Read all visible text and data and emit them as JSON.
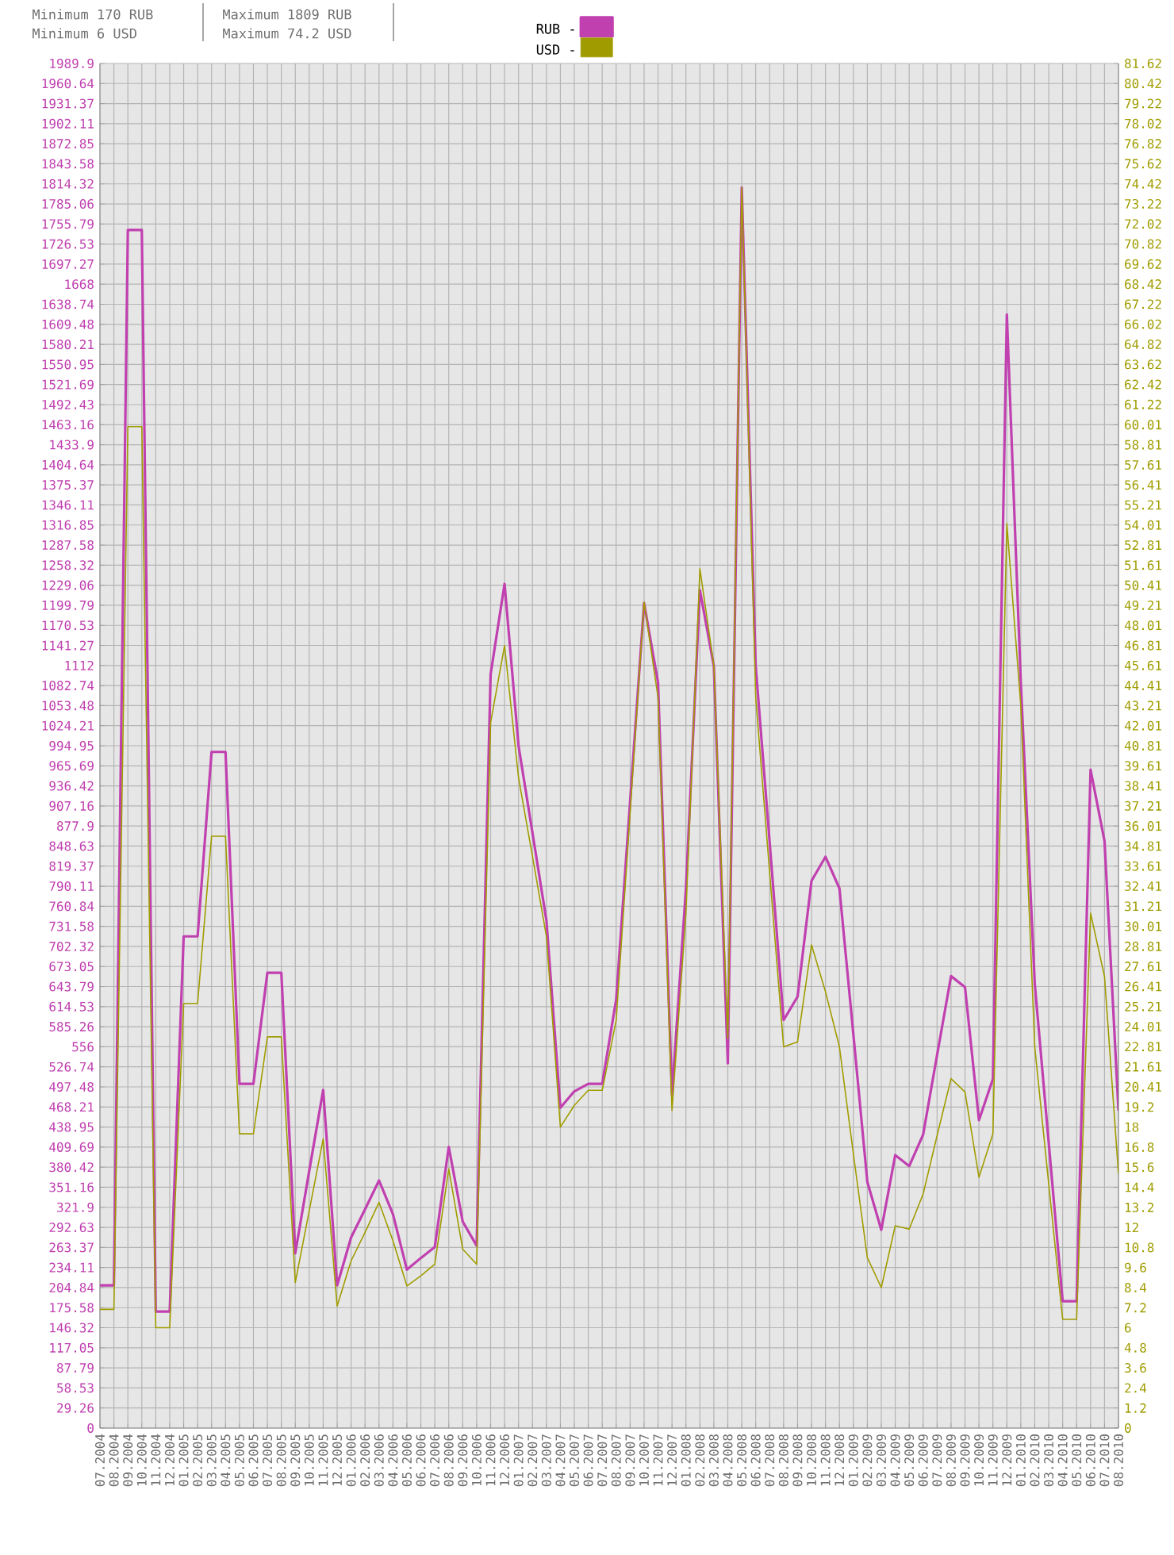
{
  "chart_data": {
    "type": "line",
    "annotations": [
      "Minimum 170 RUB",
      "Minimum 6 USD",
      "Maximum 1809 RUB",
      "Maximum 74.2 USD"
    ],
    "categories": [
      "07.2004",
      "08.2004",
      "09.2004",
      "10.2004",
      "11.2004",
      "12.2004",
      "01.2005",
      "02.2005",
      "03.2005",
      "04.2005",
      "05.2005",
      "06.2005",
      "07.2005",
      "08.2005",
      "09.2005",
      "10.2005",
      "11.2005",
      "12.2005",
      "01.2006",
      "02.2006",
      "03.2006",
      "04.2006",
      "05.2006",
      "06.2006",
      "07.2006",
      "08.2006",
      "09.2006",
      "10.2006",
      "11.2006",
      "12.2006",
      "01.2007",
      "02.2007",
      "03.2007",
      "04.2007",
      "05.2007",
      "06.2007",
      "07.2007",
      "08.2007",
      "09.2007",
      "10.2007",
      "11.2007",
      "12.2007",
      "01.2008",
      "02.2008",
      "03.2008",
      "04.2008",
      "05.2008",
      "06.2008",
      "07.2008",
      "08.2008",
      "09.2008",
      "10.2008",
      "11.2008",
      "12.2008",
      "01.2009",
      "02.2009",
      "03.2009",
      "04.2009",
      "05.2009",
      "06.2009",
      "07.2009",
      "08.2009",
      "09.2009",
      "10.2009",
      "11.2009",
      "12.2009",
      "01.2010",
      "02.2010",
      "03.2010",
      "04.2010",
      "05.2010",
      "06.2010",
      "07.2010",
      "08.2010"
    ],
    "series": [
      {
        "name": "RUB -",
        "color": "#c040b0",
        "values": [
          208,
          208,
          1747,
          1747,
          170,
          170,
          717,
          717,
          986,
          986,
          502,
          502,
          664,
          664,
          255,
          375,
          493,
          208,
          278,
          319,
          361,
          312,
          231,
          248,
          264,
          410,
          301,
          266,
          1099,
          1231,
          995,
          868,
          740,
          467,
          491,
          502,
          502,
          625,
          914,
          1203,
          1087,
          486,
          787,
          1222,
          1111,
          532,
          1809,
          1111,
          854,
          595,
          629,
          798,
          833,
          787,
          574,
          359,
          289,
          398,
          382,
          428,
          544,
          659,
          643,
          449,
          509,
          1624,
          1087,
          648,
          416,
          185,
          185,
          960,
          856,
          463
        ]
      },
      {
        "name": "USD -",
        "color": "#a09c00",
        "axis": "y2",
        "values": [
          7.1,
          7.1,
          59.9,
          59.9,
          6.0,
          6.0,
          25.4,
          25.4,
          35.4,
          35.4,
          17.6,
          17.6,
          23.4,
          23.4,
          8.7,
          13.0,
          17.3,
          7.3,
          10.0,
          11.7,
          13.5,
          11.2,
          8.5,
          9.1,
          9.8,
          15.5,
          10.7,
          9.8,
          42.2,
          46.8,
          38.9,
          34.2,
          29.4,
          18.0,
          19.3,
          20.2,
          20.2,
          24.4,
          36.8,
          49.4,
          43.7,
          19.0,
          30.8,
          51.4,
          45.6,
          23.3,
          74.2,
          43.7,
          33.2,
          22.8,
          23.1,
          28.9,
          26.1,
          22.8,
          16.4,
          10.2,
          8.4,
          12.1,
          11.9,
          14.0,
          17.5,
          20.9,
          20.1,
          15.0,
          17.6,
          54.1,
          43.2,
          22.8,
          14.6,
          6.5,
          6.5,
          30.8,
          27.0,
          15.2
        ]
      }
    ],
    "ylim": [
      0,
      1989.9
    ],
    "yticks": [
      0,
      29.26,
      58.53,
      87.79,
      117.05,
      146.32,
      175.58,
      204.84,
      234.11,
      263.37,
      292.63,
      321.9,
      351.16,
      380.42,
      409.69,
      438.95,
      468.21,
      497.48,
      526.74,
      556,
      585.26,
      614.53,
      643.79,
      673.05,
      702.32,
      731.58,
      760.84,
      790.11,
      819.37,
      848.63,
      877.9,
      907.16,
      936.42,
      965.69,
      994.95,
      1024.21,
      1053.48,
      1082.74,
      1112,
      1141.27,
      1170.53,
      1199.79,
      1229.06,
      1258.32,
      1287.58,
      1316.85,
      1346.11,
      1375.37,
      1404.64,
      1433.9,
      1463.16,
      1492.43,
      1521.69,
      1550.95,
      1580.21,
      1609.48,
      1638.74,
      1668,
      1697.27,
      1726.53,
      1755.79,
      1785.06,
      1814.32,
      1843.58,
      1872.85,
      1902.11,
      1931.37,
      1960.64,
      1989.9
    ],
    "y2lim": [
      0,
      81.62
    ],
    "y2ticks": [
      0,
      1.2,
      2.4,
      3.6,
      4.8,
      6,
      7.2,
      8.4,
      9.6,
      10.8,
      12,
      13.2,
      14.4,
      15.6,
      16.8,
      18,
      19.2,
      20.41,
      21.61,
      22.81,
      24.01,
      25.21,
      26.41,
      27.61,
      28.81,
      30.01,
      31.21,
      32.41,
      33.61,
      34.81,
      36.01,
      37.21,
      38.41,
      39.61,
      40.81,
      42.01,
      43.21,
      44.41,
      45.61,
      46.81,
      48.01,
      49.21,
      50.41,
      51.61,
      52.81,
      54.01,
      55.21,
      56.41,
      57.61,
      58.81,
      60.01,
      61.22,
      62.42,
      63.62,
      64.82,
      66.02,
      67.22,
      68.42,
      69.62,
      70.82,
      72.02,
      73.22,
      74.42,
      75.62,
      76.82,
      78.02,
      79.22,
      80.42,
      81.62
    ],
    "grid": true,
    "legend": "top",
    "line_style": "solid"
  }
}
